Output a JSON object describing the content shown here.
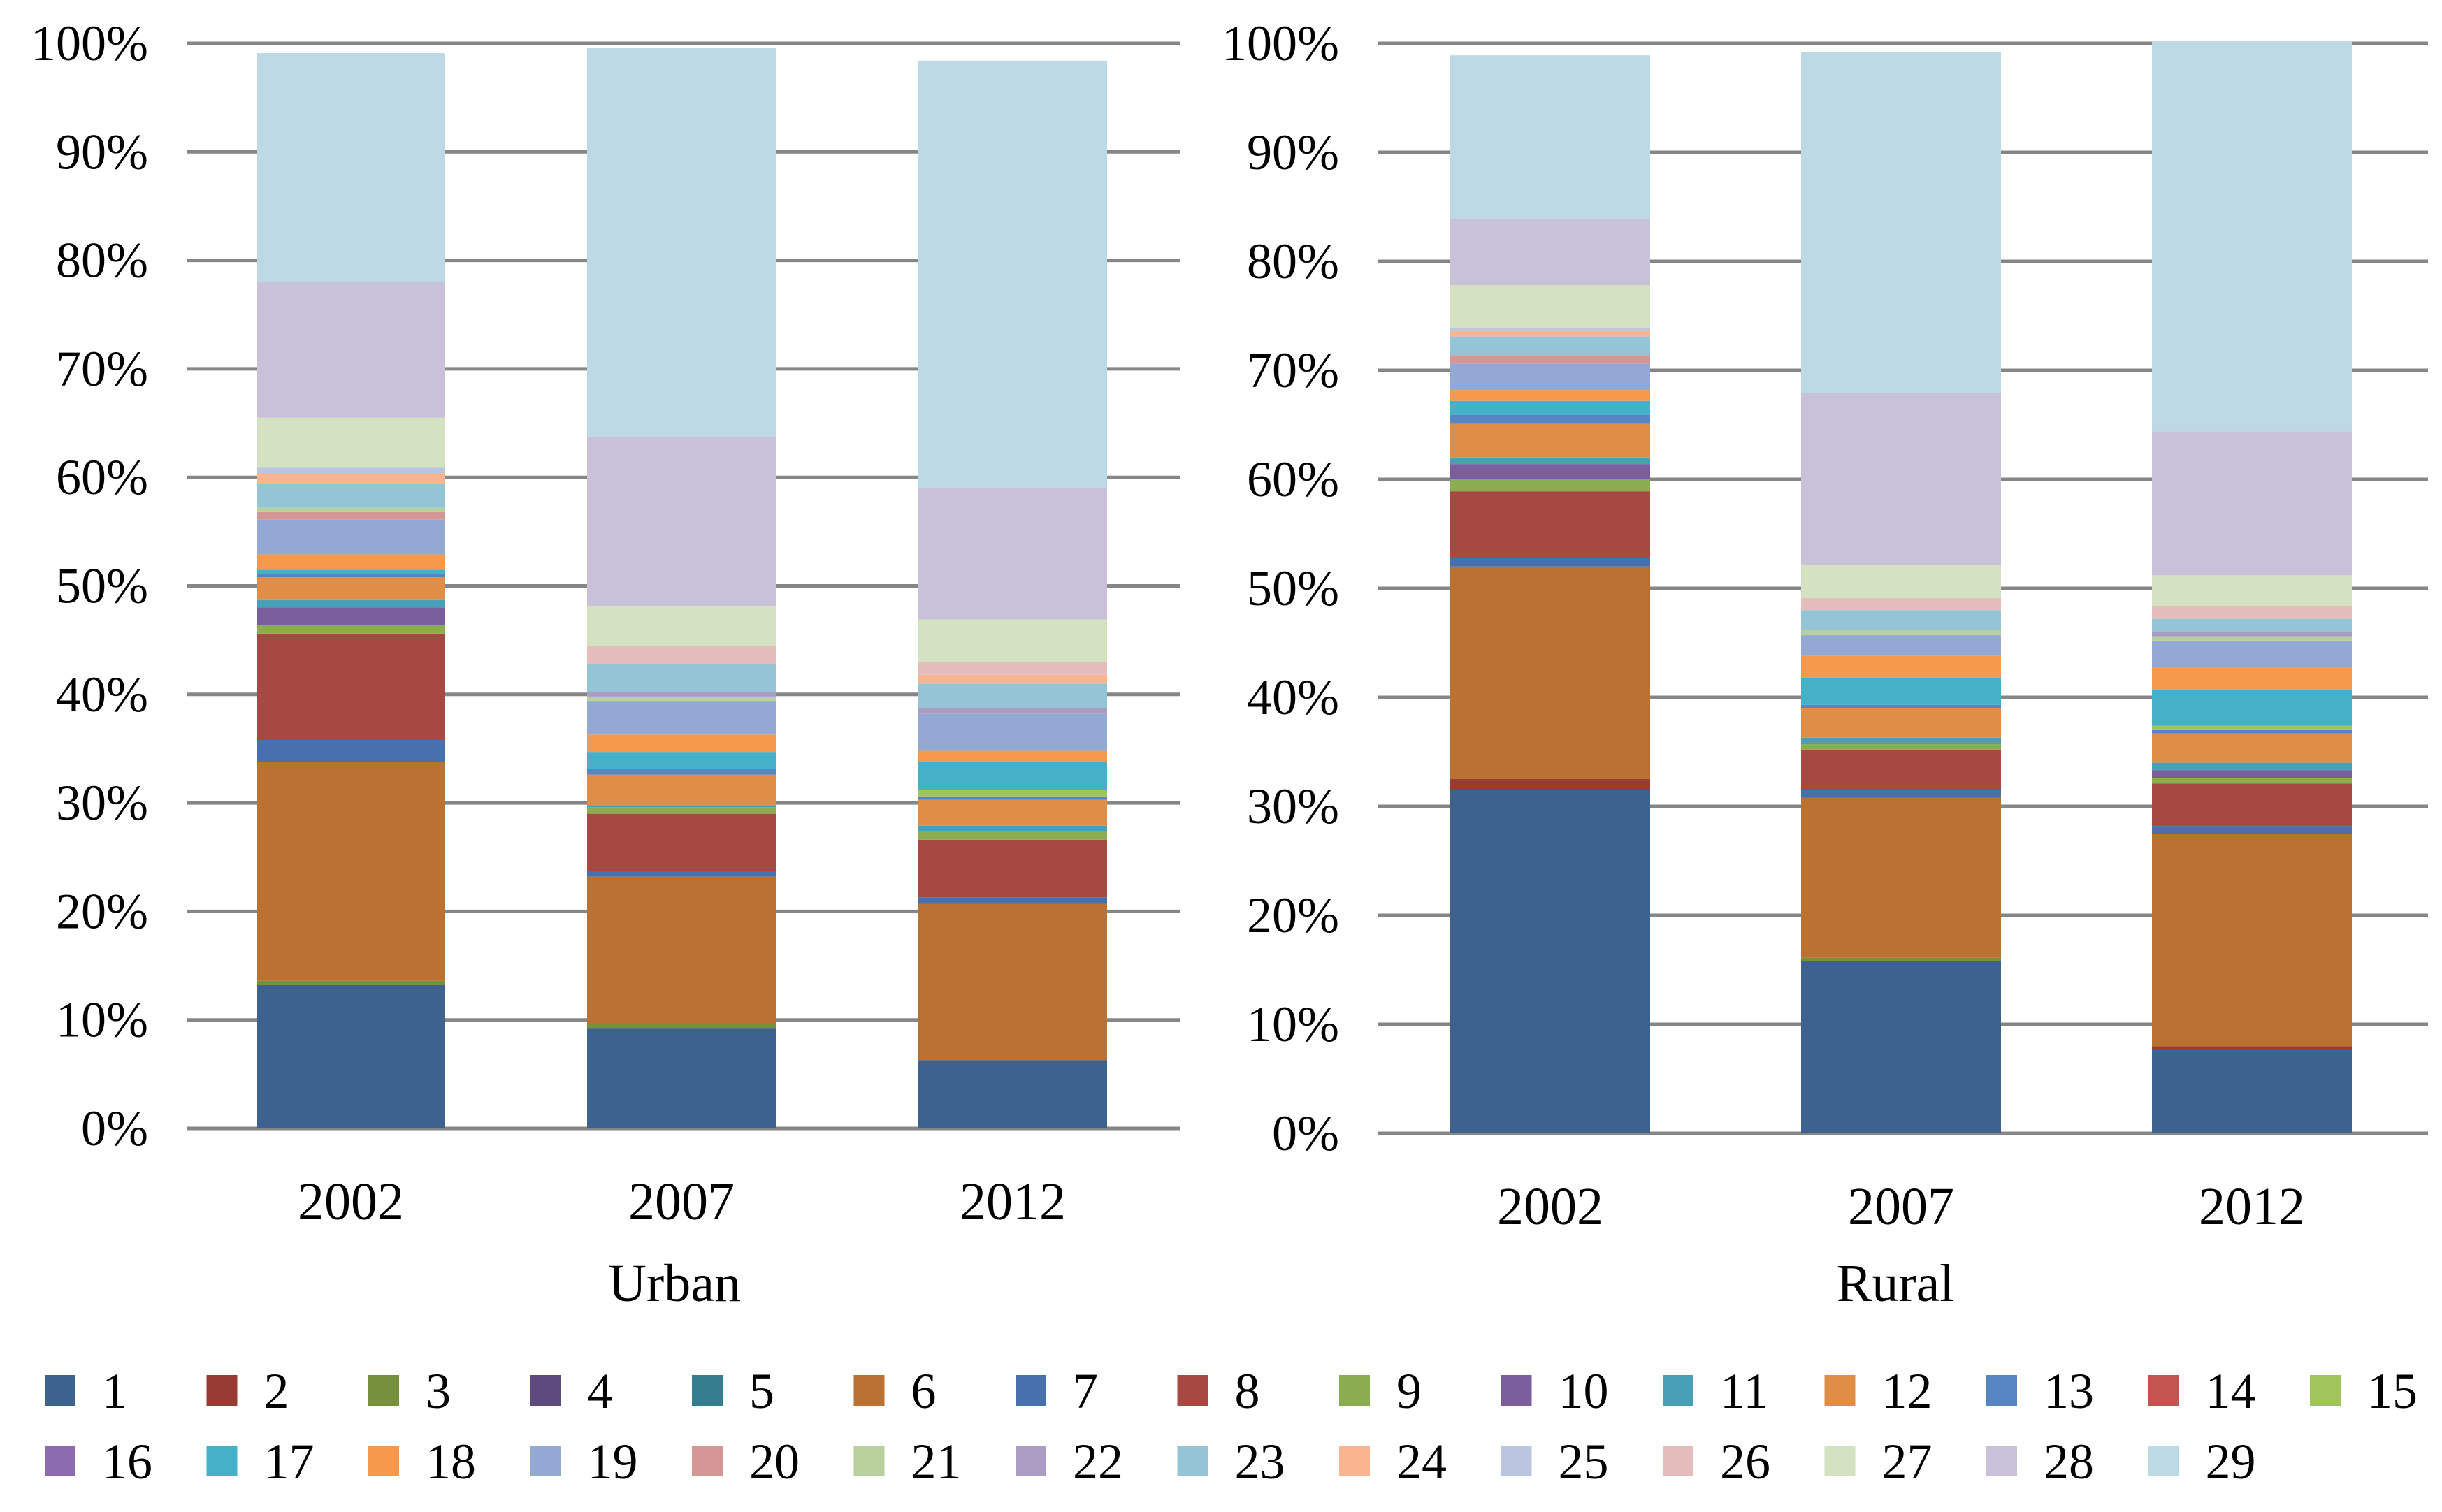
{
  "legend_labels": [
    "1",
    "2",
    "3",
    "4",
    "5",
    "6",
    "7",
    "8",
    "9",
    "10",
    "11",
    "12",
    "13",
    "14",
    "15",
    "16",
    "17",
    "18",
    "19",
    "20",
    "21",
    "22",
    "23",
    "24",
    "25",
    "26",
    "27",
    "28",
    "29"
  ],
  "colors": [
    "#3e628f",
    "#963c33",
    "#76903c",
    "#5f4a7f",
    "#357e8f",
    "#ba7131",
    "#4671ac",
    "#a84843",
    "#8cac50",
    "#7a5e9e",
    "#489fb7",
    "#df8d47",
    "#5685c4",
    "#c35450",
    "#a1c55c",
    "#8c6bb1",
    "#45b1c9",
    "#f7994d",
    "#93a9d3",
    "#d49796",
    "#b8d09c",
    "#ab9cc4",
    "#94c5d7",
    "#f9b58f",
    "#bac6df",
    "#e3bcbb",
    "#d5e2c2",
    "#c9c1d7",
    "#bcd9e4"
  ],
  "chart_data": [
    {
      "type": "bar",
      "stacked": true,
      "title": "Urban",
      "xlabel": "Urban",
      "ylabel": "",
      "ylim": [
        0,
        100
      ],
      "yticks": [
        "0%",
        "10%",
        "20%",
        "30%",
        "40%",
        "50%",
        "60%",
        "70%",
        "80%",
        "90%",
        "100%"
      ],
      "categories": [
        "2002",
        "2007",
        "2012"
      ],
      "values_by_category": [
        [
          13.2,
          0,
          0.4,
          0,
          0,
          20.2,
          2,
          9.8,
          0.8,
          1.6,
          0.7,
          2.1,
          0.3,
          0,
          0,
          0,
          0.4,
          1.4,
          3.2,
          0.7,
          0.4,
          0,
          2.2,
          1,
          0.5,
          0,
          4.6,
          12.5,
          21.1
        ],
        [
          9.2,
          0,
          0.4,
          0,
          0,
          13.6,
          0.5,
          5.3,
          0.6,
          0,
          0.2,
          2.8,
          0.5,
          0,
          0,
          0,
          1.6,
          1.6,
          3.1,
          0,
          0.4,
          0.4,
          2.6,
          0,
          0,
          1.7,
          3.6,
          15.6,
          35.9
        ],
        [
          6.3,
          0,
          0,
          0,
          0,
          14.4,
          0.6,
          5.3,
          0.8,
          0,
          0.5,
          2.4,
          0.3,
          0,
          0.6,
          0,
          2.6,
          1,
          3.4,
          0,
          0,
          0.5,
          2.3,
          0.8,
          0,
          1.2,
          3.9,
          12.1,
          39.4
        ]
      ]
    },
    {
      "type": "bar",
      "stacked": true,
      "title": "Rural",
      "xlabel": "Rural",
      "ylabel": "",
      "ylim": [
        0,
        100
      ],
      "yticks": [
        "0%",
        "10%",
        "20%",
        "30%",
        "40%",
        "50%",
        "60%",
        "70%",
        "80%",
        "90%",
        "100%"
      ],
      "categories": [
        "2002",
        "2007",
        "2012"
      ],
      "values_by_category": [
        [
          31.5,
          1,
          0,
          0,
          0,
          19.5,
          0.8,
          6.1,
          1.1,
          1.4,
          0.6,
          3.1,
          0.8,
          0,
          0,
          0,
          1.3,
          1,
          2.4,
          0.8,
          0,
          0,
          1.7,
          0.5,
          0.3,
          0,
          3.9,
          6.1,
          15
        ],
        [
          15.8,
          0,
          0.3,
          0,
          0,
          14.7,
          0.7,
          3.7,
          0.5,
          0,
          0.6,
          2.7,
          0.3,
          0,
          0,
          0,
          2.5,
          2,
          1.9,
          0,
          0.5,
          0,
          1.8,
          0,
          0,
          1.1,
          3,
          15.8,
          31.3
        ],
        [
          7.7,
          0.3,
          0,
          0,
          0,
          19.5,
          0.7,
          3.9,
          0.5,
          0.7,
          0.7,
          2.7,
          0.3,
          0,
          0.4,
          0,
          3.3,
          2,
          2.5,
          0,
          0.4,
          0.4,
          1.2,
          0,
          0,
          1.2,
          2.8,
          13.2,
          35.8
        ]
      ]
    }
  ]
}
